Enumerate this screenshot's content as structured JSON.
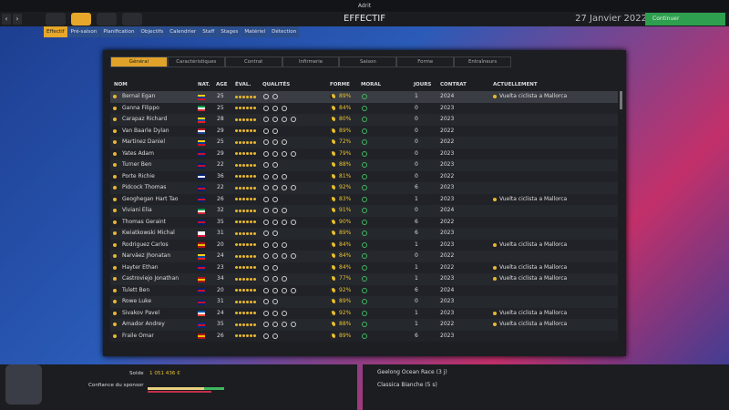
{
  "topbar": {
    "user": "Adrit"
  },
  "header": {
    "title": "EFFECTIF",
    "date": "27 Janvier 2022",
    "continue": "Continuer"
  },
  "tabs": [
    "Effectif",
    "Pré-saison",
    "Planification",
    "Objectifs",
    "Calendrier",
    "Staff",
    "Stages",
    "Matériel",
    "Détection"
  ],
  "subtabs": [
    "Général",
    "Caractéristiques",
    "Contrat",
    "Infirmerie",
    "Saison",
    "Forme",
    "Entraîneurs"
  ],
  "table": {
    "columns": [
      "NOM",
      "NAT.",
      "AGE",
      "ÉVAL.",
      "QUALITÉS",
      "FORME",
      "MORAL",
      "JOURS",
      "CONTRAT",
      "ACTUELLEMENT"
    ],
    "rows": [
      [
        "Bernal Egan",
        "25",
        "89%",
        "1",
        "2024",
        "Vuelta ciclista a Mallorca"
      ],
      [
        "Ganna Filippo",
        "25",
        "84%",
        "0",
        "2023",
        ""
      ],
      [
        "Carapaz Richard",
        "28",
        "80%",
        "0",
        "2023",
        ""
      ],
      [
        "Van Baarle Dylan",
        "29",
        "89%",
        "0",
        "2022",
        ""
      ],
      [
        "Martinez Daniel",
        "25",
        "72%",
        "0",
        "2022",
        ""
      ],
      [
        "Yates Adam",
        "29",
        "79%",
        "0",
        "2023",
        ""
      ],
      [
        "Turner Ben",
        "22",
        "88%",
        "0",
        "2023",
        ""
      ],
      [
        "Porte Richie",
        "36",
        "81%",
        "0",
        "2022",
        ""
      ],
      [
        "Pidcock Thomas",
        "22",
        "92%",
        "6",
        "2023",
        ""
      ],
      [
        "Geoghegan Hart Tao",
        "26",
        "83%",
        "1",
        "2023",
        "Vuelta ciclista a Mallorca"
      ],
      [
        "Viviani Elia",
        "32",
        "91%",
        "0",
        "2024",
        ""
      ],
      [
        "Thomas Geraint",
        "35",
        "90%",
        "6",
        "2022",
        ""
      ],
      [
        "Kwiatkowski Michal",
        "31",
        "89%",
        "6",
        "2023",
        ""
      ],
      [
        "Rodriguez Carlos",
        "20",
        "84%",
        "1",
        "2023",
        "Vuelta ciclista a Mallorca"
      ],
      [
        "Narváez Jhonatan",
        "24",
        "84%",
        "0",
        "2022",
        ""
      ],
      [
        "Hayter Ethan",
        "23",
        "84%",
        "1",
        "2022",
        "Vuelta ciclista a Mallorca"
      ],
      [
        "Castroviejo Jonathan",
        "34",
        "77%",
        "1",
        "2023",
        "Vuelta ciclista a Mallorca"
      ],
      [
        "Tulett Ben",
        "20",
        "92%",
        "6",
        "2024",
        ""
      ],
      [
        "Rowe Luke",
        "31",
        "89%",
        "0",
        "2023",
        ""
      ],
      [
        "Sivakov Pavel",
        "24",
        "92%",
        "1",
        "2023",
        "Vuelta ciclista a Mallorca"
      ],
      [
        "Amador Andrey",
        "35",
        "88%",
        "1",
        "2022",
        "Vuelta ciclista a Mallorca"
      ],
      [
        "Fraile Omar",
        "26",
        "89%",
        "6",
        "2023",
        ""
      ]
    ],
    "flags": [
      [
        "#fcd116",
        "#003893",
        "#ce1126"
      ],
      [
        "#009246",
        "#fff",
        "#ce2b37"
      ],
      [
        "#fcd116",
        "#034ea2",
        "#ed1c24"
      ],
      [
        "#ae1c28",
        "#fff",
        "#21468b"
      ],
      [
        "#fcd116",
        "#003893",
        "#ce1126"
      ],
      [
        "#012169",
        "#c8102e",
        "#012169"
      ],
      [
        "#012169",
        "#c8102e",
        "#012169"
      ],
      [
        "#012169",
        "#fff",
        "#012169"
      ],
      [
        "#012169",
        "#c8102e",
        "#012169"
      ],
      [
        "#012169",
        "#c8102e",
        "#012169"
      ],
      [
        "#009246",
        "#fff",
        "#ce2b37"
      ],
      [
        "#012169",
        "#c8102e",
        "#012169"
      ],
      [
        "#fff",
        "#fff",
        "#dc143c"
      ],
      [
        "#aa151b",
        "#f1bf00",
        "#aa151b"
      ],
      [
        "#fcd116",
        "#034ea2",
        "#ed1c24"
      ],
      [
        "#012169",
        "#c8102e",
        "#012169"
      ],
      [
        "#aa151b",
        "#f1bf00",
        "#aa151b"
      ],
      [
        "#012169",
        "#c8102e",
        "#012169"
      ],
      [
        "#012169",
        "#c8102e",
        "#012169"
      ],
      [
        "#0055a4",
        "#fff",
        "#ef4135"
      ],
      [
        "#002b7f",
        "#ce1126",
        "#002b7f"
      ],
      [
        "#aa151b",
        "#f1bf00",
        "#aa151b"
      ]
    ]
  },
  "footer": {
    "balance_label": "Solde",
    "balance": "1 051 436 €",
    "sponsor_label": "Confiance du sponsor",
    "events": [
      "Geelong Ocean Race (3 j)",
      "Classica Bianche (5 s)"
    ]
  }
}
